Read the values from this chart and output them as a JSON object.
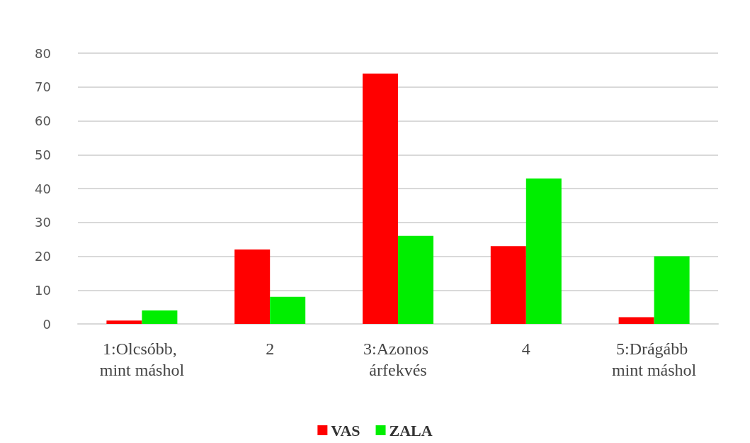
{
  "chart_data": {
    "type": "bar",
    "categories": [
      "1:Olcsóbb, mint máshol",
      "2",
      "3:Azonos árfekvés",
      "4",
      "5:Drágább mint máshol"
    ],
    "series": [
      {
        "name": "VAS",
        "color": "#ff0000",
        "values": [
          1,
          22,
          74,
          23,
          2
        ]
      },
      {
        "name": "ZALA",
        "color": "#00ee00",
        "values": [
          4,
          8,
          26,
          43,
          20
        ]
      }
    ],
    "ylim": [
      0,
      80
    ],
    "yticks": [
      0,
      10,
      20,
      30,
      40,
      50,
      60,
      70,
      80
    ],
    "grid": "y",
    "legend": "bottom"
  }
}
